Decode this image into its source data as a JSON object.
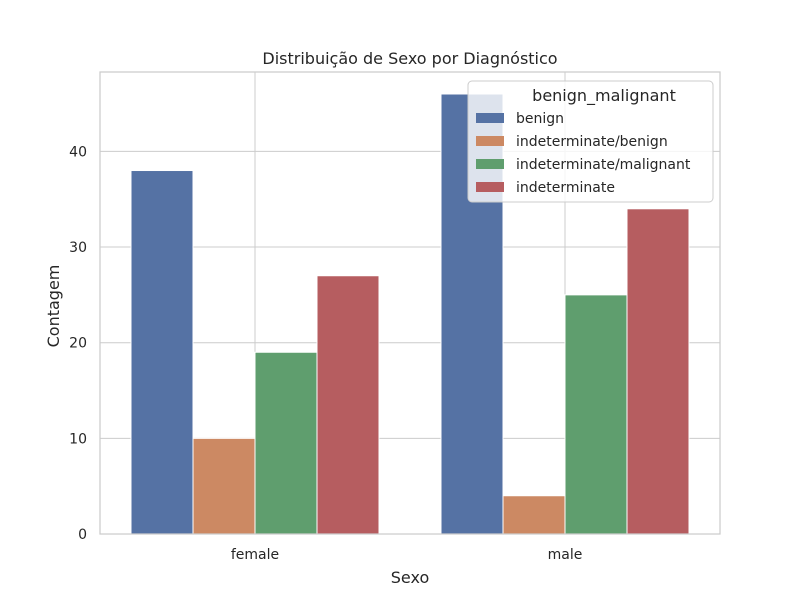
{
  "chart_data": {
    "type": "bar",
    "title": "Distribuição de Sexo por Diagnóstico",
    "xlabel": "Sexo",
    "ylabel": "Contagem",
    "categories": [
      "female",
      "male"
    ],
    "ylim": [
      0,
      48.3
    ],
    "yticks": [
      0,
      10,
      20,
      30,
      40
    ],
    "grid": true,
    "legend": {
      "title": "benign_malignant",
      "placement": "top-right"
    },
    "series": [
      {
        "name": "benign",
        "values": [
          38,
          46
        ],
        "color": "#5572a4"
      },
      {
        "name": "indeterminate/benign",
        "values": [
          10,
          4
        ],
        "color": "#cc8963"
      },
      {
        "name": "indeterminate/malignant",
        "values": [
          19,
          25
        ],
        "color": "#5f9e6e"
      },
      {
        "name": "indeterminate",
        "values": [
          27,
          34
        ],
        "color": "#b65d60"
      }
    ]
  }
}
